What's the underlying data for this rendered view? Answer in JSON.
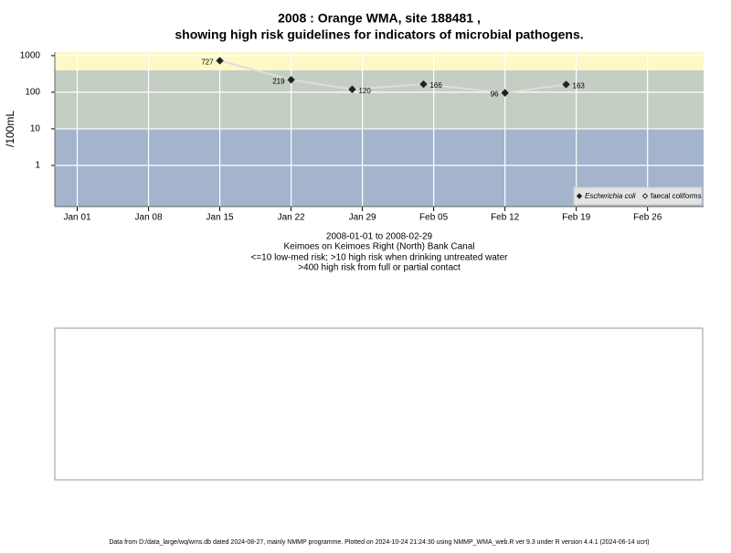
{
  "chart_data": {
    "type": "line",
    "title": "2008 : Orange WMA, site 188481 ,",
    "subtitle": "showing high risk guidelines for indicators of microbial pathogens.",
    "y_label": "/100mL",
    "notes": [
      "2008-01-01 to 2008-02-29",
      "Keimoes on Keimoes Right (North) Bank Canal",
      "<=10 low-med risk; >10 high risk when drinking untreated water",
      ">400 high risk from full or partial contact"
    ],
    "footer": "Data from D:/data_large/wq/wms.db dated 2024-08-27, mainly NMMP programme. Plotted on 2024-10-24 21:24:30 using NMMP_WMA_web.R ver 9.3 under R version 4.4.1 (2024-06-14 ucrt)",
    "x": [
      15,
      22,
      28,
      35,
      43,
      49
    ],
    "series": [
      {
        "name": "Escherichia coli",
        "color": "#222222",
        "line_color": "#dddddd",
        "values": [
          727,
          219,
          120,
          166,
          96,
          163
        ]
      },
      {
        "name": "faecal coliforms",
        "color": "#222222",
        "line_color": "#dddddd",
        "values": [
          null,
          null,
          null,
          null,
          null,
          null
        ]
      }
    ],
    "xlim": [
      -1.2,
      62.5
    ],
    "xticks": [
      {
        "value": 1,
        "label": "Jan 01"
      },
      {
        "value": 8,
        "label": "Jan 08"
      },
      {
        "value": 15,
        "label": "Jan 15"
      },
      {
        "value": 22,
        "label": "Jan 22"
      },
      {
        "value": 29,
        "label": "Jan 29"
      },
      {
        "value": 36,
        "label": "Feb 05"
      },
      {
        "value": 43,
        "label": "Feb 12"
      },
      {
        "value": 50,
        "label": "Feb 19"
      },
      {
        "value": 57,
        "label": "Feb 26"
      }
    ],
    "ylim": [
      0.075,
      1250
    ],
    "yticks": [
      1,
      10,
      100,
      1000
    ],
    "log_y": true,
    "grid": true,
    "bands": {
      "thresholds": [
        10,
        400
      ],
      "colors": [
        "#a3b4cc",
        "#c4cec2",
        "#fdf8c6"
      ]
    },
    "legend": "bottom-right"
  }
}
